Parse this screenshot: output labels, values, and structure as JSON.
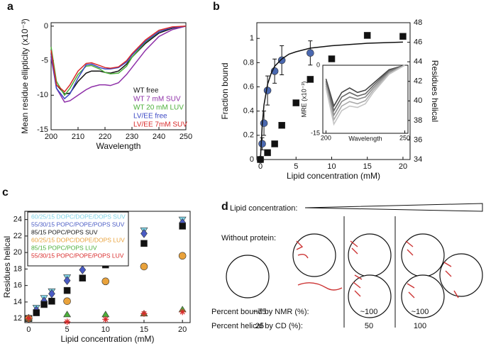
{
  "chart_data": [
    {
      "type": "line",
      "panel": "a",
      "x_label": "Wavelength",
      "y_label": "Mean residue ellipticity (x10⁻³)",
      "x": [
        200,
        202,
        205,
        207,
        210,
        213,
        215,
        218,
        220,
        222,
        225,
        228,
        230,
        235,
        240,
        245,
        250
      ],
      "xlim": [
        200,
        250
      ],
      "ylim": [
        -15,
        0.5
      ],
      "xticks": [
        200,
        210,
        220,
        230,
        240,
        250
      ],
      "yticks": [
        0,
        -5,
        -10,
        -15
      ],
      "legend": "lower right",
      "series": [
        {
          "name": "WT free",
          "color": "#111111",
          "values": [
            -4,
            -8.5,
            -9.8,
            -9.7,
            -8,
            -6.8,
            -6.5,
            -6.5,
            -6.7,
            -6.8,
            -6.5,
            -5.5,
            -4.5,
            -2.5,
            -1,
            -0.3,
            0
          ]
        },
        {
          "name": "WT 7 mM SUV",
          "color": "#8e2fa8",
          "values": [
            -4.5,
            -9,
            -11,
            -10.8,
            -10,
            -9.2,
            -8.8,
            -8.5,
            -8.5,
            -8.6,
            -8.2,
            -7,
            -6,
            -3.5,
            -1.5,
            -0.5,
            0
          ]
        },
        {
          "name": "WT 20 mM LUV",
          "color": "#4caf3a",
          "values": [
            -3,
            -8,
            -10,
            -9,
            -7,
            -5.8,
            -5.7,
            -6.2,
            -6.7,
            -6.9,
            -6.8,
            -5.8,
            -4.5,
            -2.3,
            -0.8,
            -0.2,
            0
          ]
        },
        {
          "name": "LV/EE free",
          "color": "#3b47c4",
          "values": [
            -4,
            -9,
            -10.5,
            -9.8,
            -7.5,
            -5.6,
            -5.5,
            -6,
            -6.2,
            -6.2,
            -6,
            -5.2,
            -4.2,
            -2.2,
            -0.8,
            -0.2,
            0
          ]
        },
        {
          "name": "LV/EE 7mM SUV",
          "color": "#d92a2a",
          "values": [
            -3.5,
            -8.5,
            -9.5,
            -8.5,
            -6.5,
            -5.4,
            -5.3,
            -5.7,
            -6,
            -6.1,
            -5.9,
            -5,
            -4,
            -2,
            -0.6,
            -0.1,
            0
          ]
        }
      ]
    },
    {
      "type": "scatter",
      "panel": "b",
      "x_label": "Lipid concentration (mM)",
      "y_label": "Fraction bound",
      "y2_label": "Residues helical",
      "xlim": [
        -0.5,
        21
      ],
      "ylim": [
        0,
        1.13
      ],
      "y2lim": [
        34,
        48
      ],
      "xticks": [
        0,
        5,
        10,
        15,
        20
      ],
      "yticks": [
        0,
        0.2,
        0.4,
        0.6,
        0.8,
        1
      ],
      "y2ticks": [
        34,
        36,
        38,
        40,
        42,
        44,
        46,
        48
      ],
      "series": [
        {
          "marker": "circle",
          "color": "#4a68b0",
          "x": [
            0,
            0.25,
            0.5,
            1,
            2,
            3,
            7
          ],
          "values": [
            0,
            0.13,
            0.3,
            0.57,
            0.73,
            0.82,
            0.88
          ],
          "errors": [
            0.02,
            0.05,
            0.1,
            0.12,
            0.1,
            0.12,
            0.1
          ]
        },
        {
          "color": "#111111",
          "x": [
            0,
            0.25,
            0.5,
            1,
            1.5,
            2,
            3,
            4,
            5,
            7,
            10,
            15,
            20
          ],
          "values": [
            0,
            0.28,
            0.45,
            0.62,
            0.71,
            0.77,
            0.83,
            0.87,
            0.89,
            0.92,
            0.94,
            0.96,
            0.97
          ]
        },
        {
          "marker": "square",
          "color": "#111111",
          "axis": "y2",
          "x": [
            0,
            1,
            2,
            3,
            5,
            7,
            10,
            15,
            20
          ],
          "values": [
            34,
            34.7,
            35.6,
            37.5,
            39.8,
            42.2,
            44.3,
            46.7,
            46.6
          ]
        }
      ]
    },
    {
      "type": "line",
      "x_label": "Wavelength",
      "y_label": "MRE (x10⁻³)",
      "x": [
        200,
        205,
        210,
        215,
        220,
        225,
        230,
        240,
        250
      ],
      "xlim": [
        198,
        252
      ],
      "ylim": [
        -15,
        0
      ],
      "xticks": [
        200,
        250
      ],
      "yticks": [
        0,
        -15
      ],
      "series": [
        {
          "color": "#444444",
          "values": [
            -3,
            -9,
            -6,
            -5,
            -6,
            -5.5,
            -4,
            -1,
            0
          ]
        },
        {
          "color": "#666666",
          "values": [
            -3.5,
            -10,
            -7,
            -6,
            -6.8,
            -6.3,
            -4.5,
            -1.2,
            0
          ]
        },
        {
          "color": "#888888",
          "values": [
            -4,
            -11,
            -8,
            -7,
            -7.5,
            -7,
            -5,
            -1.5,
            0
          ]
        },
        {
          "color": "#aaaaaa",
          "values": [
            -4.5,
            -12,
            -9,
            -8,
            -8.5,
            -7.8,
            -5.5,
            -1.8,
            0
          ]
        },
        {
          "color": "#c4c4c4",
          "values": [
            -5,
            -13,
            -10,
            -9,
            -9.3,
            -8.5,
            -6,
            -2,
            0
          ]
        }
      ]
    },
    {
      "type": "scatter",
      "panel": "c",
      "x_label": "Lipid concentration (mM)",
      "y_label": "Residues helical",
      "xlim": [
        -0.5,
        21
      ],
      "ylim": [
        11.5,
        25
      ],
      "xticks": [
        0,
        5,
        10,
        15,
        20
      ],
      "yticks": [
        12,
        14,
        16,
        18,
        20,
        22,
        24
      ],
      "legend": "upper left",
      "series": [
        {
          "name": "60/25/15 DOPC/DOPE/DOPS SUV",
          "marker": "triangle-down",
          "color": "#7fd3e6",
          "x": [
            0,
            1,
            2,
            3,
            5,
            7,
            10,
            15,
            20
          ],
          "values": [
            12,
            13.3,
            14.5,
            15.3,
            17,
            19,
            20.4,
            22.7,
            24
          ]
        },
        {
          "name": "55/30/15 POPC/POPE/POPS SUV",
          "marker": "diamond",
          "color": "#4a5bc4",
          "x": [
            0,
            1,
            2,
            3,
            5,
            7,
            10,
            15,
            20
          ],
          "values": [
            12,
            13,
            14.1,
            15,
            16.6,
            17.9,
            19.1,
            22.3,
            23.6
          ]
        },
        {
          "name": "85/15 POPC/POPS SUV",
          "marker": "square",
          "color": "#111111",
          "x": [
            0,
            1,
            2,
            3,
            5,
            7,
            10,
            15,
            20
          ],
          "values": [
            12,
            12.7,
            13.7,
            14.1,
            15.4,
            16.9,
            18.5,
            21.1,
            23.2
          ]
        },
        {
          "name": "60/25/15 DOPC/DOPE/DOPS LUV",
          "marker": "circle",
          "color": "#e9a23b",
          "x": [
            0,
            5,
            10,
            15,
            20
          ],
          "values": [
            12,
            14.1,
            16.5,
            18.3,
            19.6
          ]
        },
        {
          "name": "85/15 POPC/POPS LUV",
          "marker": "triangle-up",
          "color": "#4caf3a",
          "x": [
            0,
            5,
            10,
            15,
            20
          ],
          "values": [
            12,
            12.5,
            12.5,
            12.6,
            13.1
          ]
        },
        {
          "name": "55/30/15 POPC/POPE/POPS LUV",
          "marker": "asterisk",
          "color": "#d92a2a",
          "x": [
            0,
            5,
            10,
            15,
            20
          ],
          "values": [
            12,
            11.6,
            11.9,
            12.6,
            12.8
          ]
        }
      ]
    }
  ],
  "diagram": {
    "panel": "d",
    "lipid_concentration": "Lipid concentration:",
    "without_protein": "Without protein:",
    "rows": [
      {
        "label": "Percent bound by NMR (%):",
        "values": [
          "~75",
          "~100",
          "~100"
        ]
      },
      {
        "label": "Percent helical by CD (%):",
        "values": [
          "25",
          "50",
          "100"
        ]
      }
    ]
  }
}
